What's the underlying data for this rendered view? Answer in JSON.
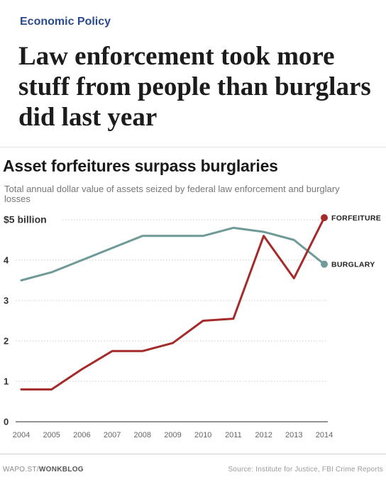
{
  "article": {
    "section": "Economic Policy",
    "headline": "Law enforcement took more stuff from people than burglars did last year"
  },
  "chart_data": {
    "type": "line",
    "title": "Asset forfeitures surpass burglaries",
    "subtitle": "Total annual dollar value of assets seized by federal law enforcement and burglary losses",
    "x": [
      2004,
      2005,
      2006,
      2007,
      2008,
      2009,
      2010,
      2011,
      2012,
      2013,
      2014
    ],
    "series": [
      {
        "name": "FORFEITURE",
        "color": "#a52a2a",
        "values": [
          0.8,
          0.8,
          1.3,
          1.75,
          1.75,
          1.95,
          2.5,
          2.55,
          4.6,
          3.55,
          5.05
        ]
      },
      {
        "name": "BURGLARY",
        "color": "#6f9a98",
        "values": [
          3.5,
          3.7,
          4.0,
          4.3,
          4.6,
          4.6,
          4.6,
          4.8,
          4.7,
          4.5,
          3.9
        ]
      }
    ],
    "y_ticks": [
      "0",
      "1",
      "2",
      "3",
      "4",
      "$5 billion"
    ],
    "ylim": [
      0,
      5
    ],
    "grid": true,
    "legend": "labels at line ends"
  },
  "footer": {
    "source_site": "WAPO.ST/",
    "source_blog": "WONKBLOG",
    "credit": "Source: Institute for Justice, FBI Crime Reports"
  }
}
